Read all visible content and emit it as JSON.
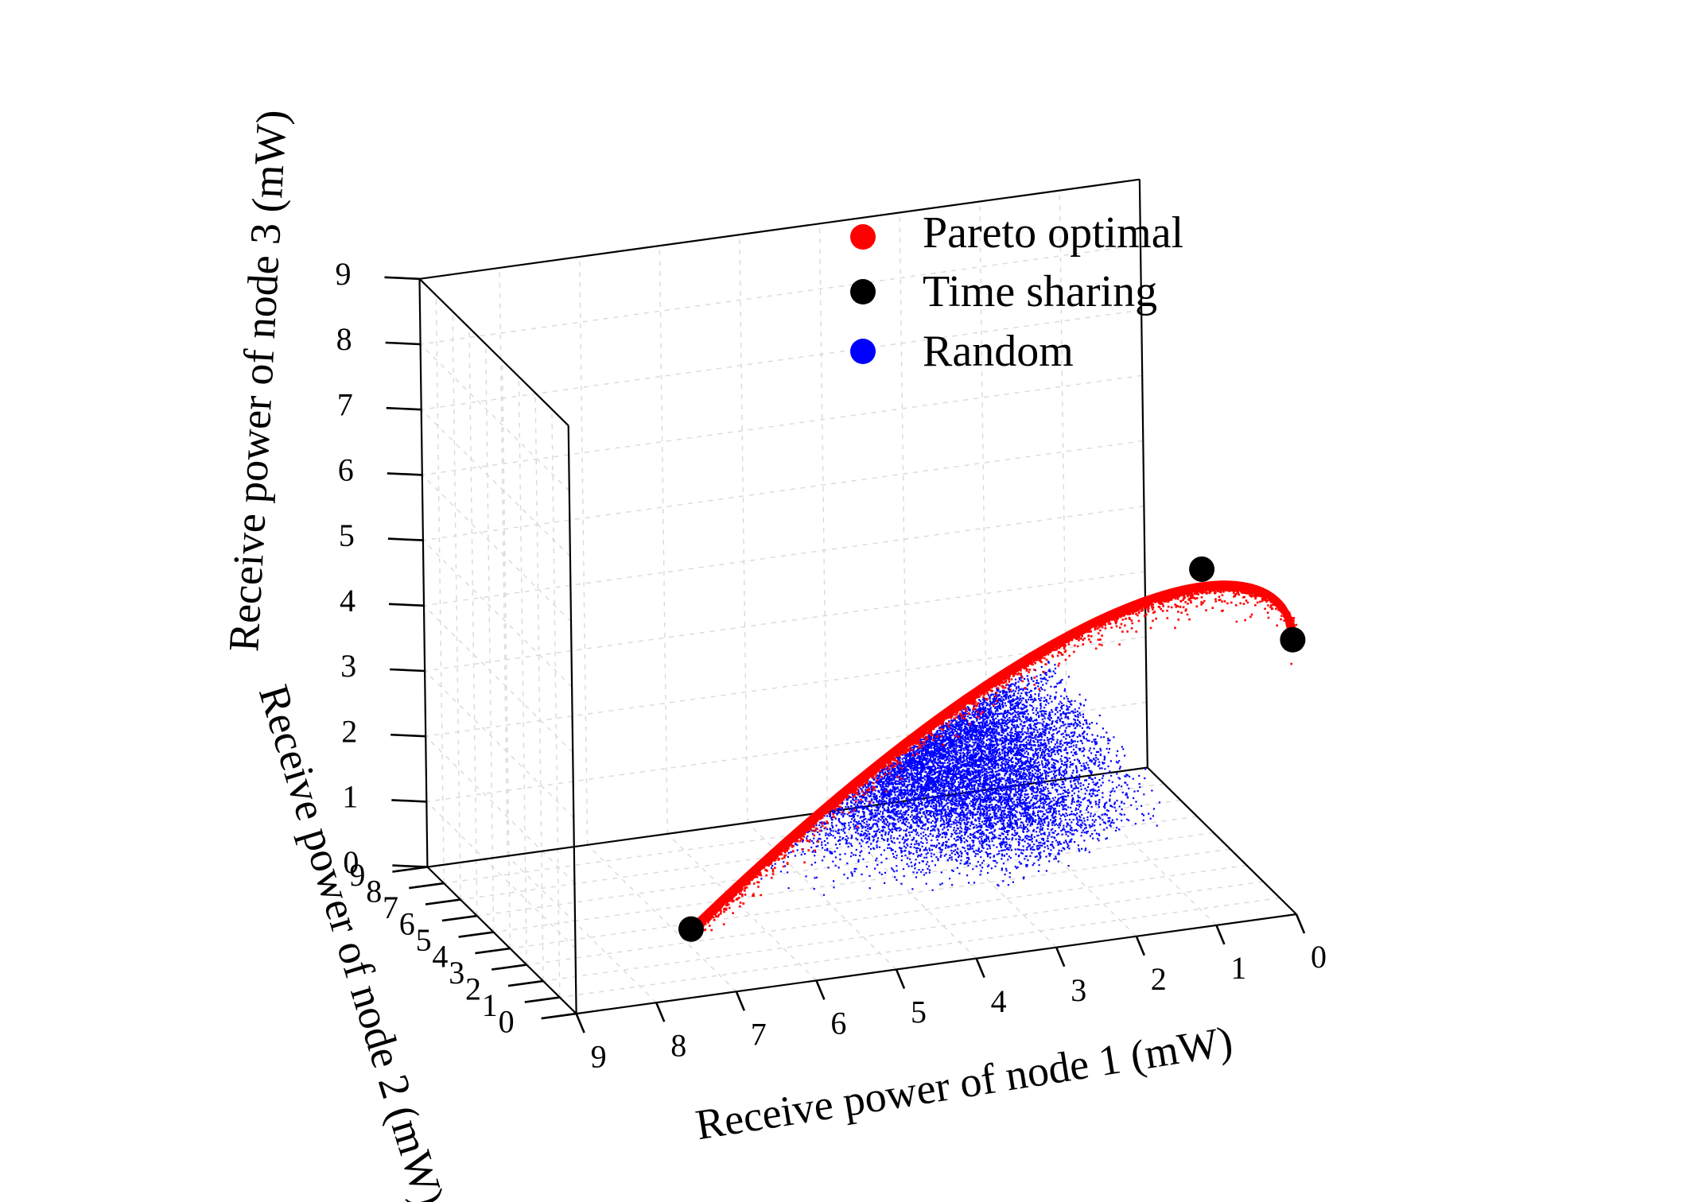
{
  "chart_data": {
    "type": "scatter3d",
    "title": "",
    "xlabel": "Receive power of node 1 (mW)",
    "ylabel": "Receive power of node 2 (mW)",
    "zlabel": "Receive power of node 3 (mW)",
    "xlim": [
      0,
      9
    ],
    "ylim": [
      0,
      9
    ],
    "zlim": [
      0,
      9
    ],
    "x_ticks": [
      "0",
      "1",
      "2",
      "3",
      "4",
      "5",
      "6",
      "7",
      "8",
      "9"
    ],
    "y_ticks": [
      "0",
      "1",
      "2",
      "3",
      "4",
      "5",
      "6",
      "7",
      "8",
      "9"
    ],
    "z_ticks": [
      "0",
      "1",
      "2",
      "3",
      "4",
      "5",
      "6",
      "7",
      "8",
      "9"
    ],
    "grid": true,
    "legend_position": "top-right",
    "colors": {
      "pareto": "#ff0000",
      "time_sharing": "#000000",
      "random": "#0000ff"
    },
    "series": [
      {
        "name": "Pareto optimal",
        "marker": "dense small dots",
        "description_points": [
          {
            "x": 0.0,
            "y": 0.0,
            "z": 4.2
          },
          {
            "x": 1.0,
            "y": 0.6,
            "z": 5.1
          },
          {
            "x": 2.5,
            "y": 1.5,
            "z": 4.6
          },
          {
            "x": 4.0,
            "y": 2.4,
            "z": 3.5
          },
          {
            "x": 5.5,
            "y": 3.2,
            "z": 2.0
          },
          {
            "x": 6.8,
            "y": 3.7,
            "z": 0.0
          }
        ]
      },
      {
        "name": "Time sharing",
        "marker": "large circles",
        "points": [
          {
            "x": 0.0,
            "y": 0.0,
            "z": 4.2
          },
          {
            "x": 1.0,
            "y": 0.6,
            "z": 5.3
          },
          {
            "x": 6.8,
            "y": 3.7,
            "z": 0.0
          }
        ]
      },
      {
        "name": "Random",
        "marker": "dense small dots",
        "region_center": {
          "x": 4.5,
          "y": 2.8,
          "z": 1.8
        }
      }
    ]
  }
}
